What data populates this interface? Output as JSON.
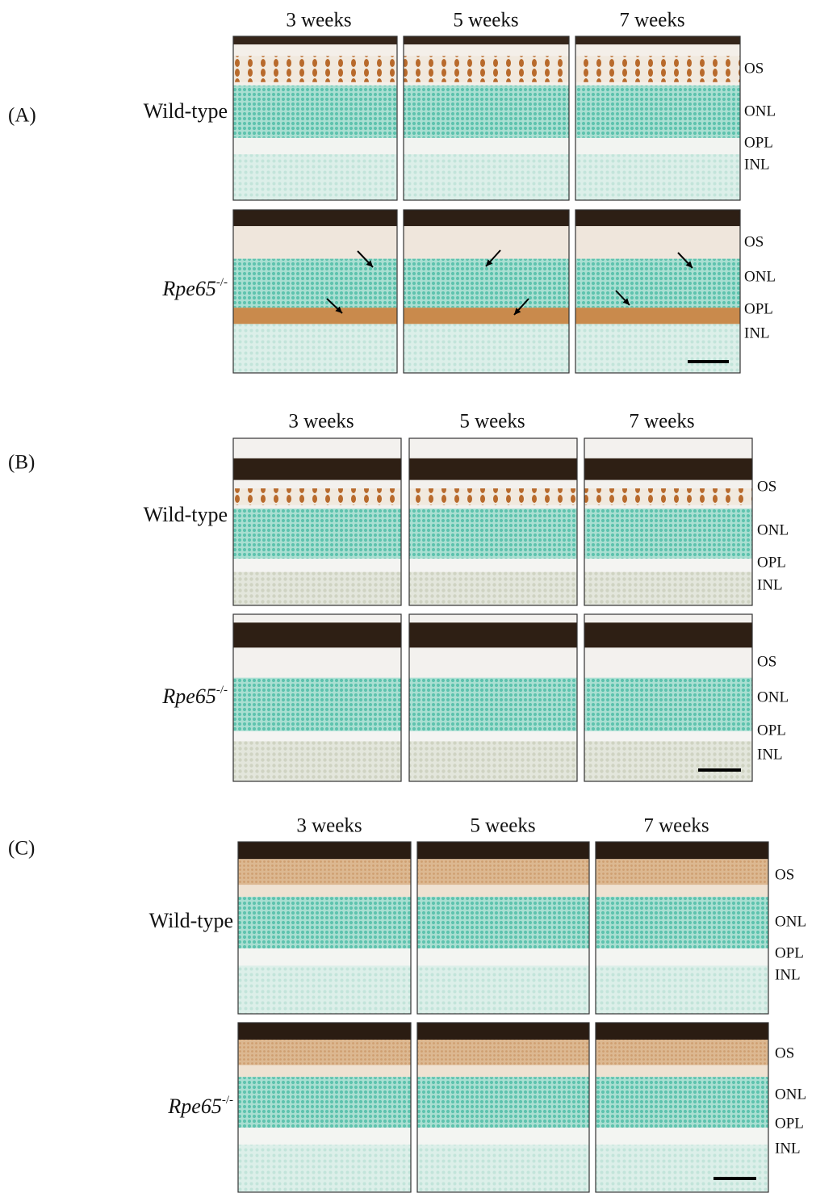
{
  "panels": [
    {
      "label": "(A)",
      "columns": [
        "3 weeks",
        "5 weeks",
        "7 weeks"
      ],
      "rows": [
        {
          "label": "Wild-type",
          "layers": [
            "OS",
            "ONL",
            "OPL",
            "INL"
          ]
        },
        {
          "label": "Rpe65",
          "superscript": "-/-",
          "layers": [
            "OS",
            "ONL",
            "OPL",
            "INL"
          ]
        }
      ]
    },
    {
      "label": "(B)",
      "columns": [
        "3 weeks",
        "5 weeks",
        "7 weeks"
      ],
      "rows": [
        {
          "label": "Wild-type",
          "layers": [
            "OS",
            "ONL",
            "OPL",
            "INL"
          ]
        },
        {
          "label": "Rpe65",
          "superscript": "-/-",
          "layers": [
            "OS",
            "ONL",
            "OPL",
            "INL"
          ]
        }
      ]
    },
    {
      "label": "(C)",
      "columns": [
        "3 weeks",
        "5 weeks",
        "7 weeks"
      ],
      "rows": [
        {
          "label": "Wild-type",
          "layers": [
            "OS",
            "ONL",
            "OPL",
            "INL"
          ]
        },
        {
          "label": "Rpe65",
          "superscript": "-/-",
          "layers": [
            "OS",
            "ONL",
            "OPL",
            "INL"
          ]
        }
      ]
    }
  ]
}
